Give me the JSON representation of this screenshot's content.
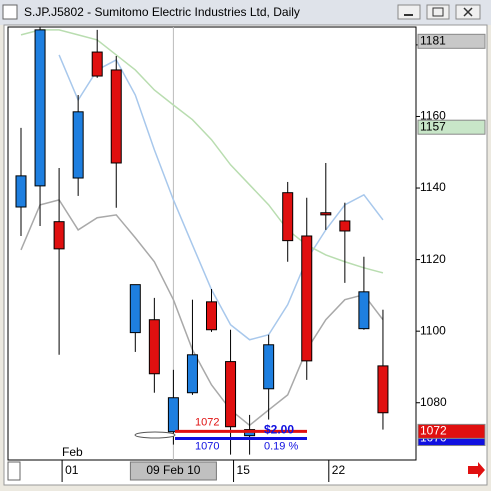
{
  "chart_data": {
    "type": "candlestick",
    "title": "S.JP.J5802 - Sumitomo Electric Industries Ltd, Daily",
    "month_label": "Feb",
    "categories": [
      null,
      null,
      "01",
      null,
      null,
      null,
      null,
      null,
      "09 Feb 10",
      null,
      null,
      "15",
      null,
      null,
      null,
      null,
      "22",
      null,
      null,
      null
    ],
    "highlighted_index": 8,
    "open": [
      1134.7,
      1140.6,
      1130.6,
      1142.8,
      1178.0,
      1173.0,
      1099.6,
      1103.2,
      1071.9,
      1082.8,
      1108.2,
      1091.5,
      1070.8,
      1083.9,
      1138.7,
      1126.6,
      1133.1,
      1130.8,
      1100.7,
      1090.3
    ],
    "high": [
      1156.8,
      1185.0,
      1145.6,
      1166.0,
      1184.2,
      1176.9,
      1113.0,
      1109.3,
      1089.2,
      1108.8,
      1111.8,
      1100.4,
      1076.6,
      1099.0,
      1141.7,
      1137.3,
      1147.0,
      1135.9,
      1120.8,
      1106.0
    ],
    "low": [
      1126.6,
      1129.4,
      1093.4,
      1137.8,
      1170.8,
      1134.5,
      1094.2,
      1082.8,
      1068.3,
      1082.2,
      1099.8,
      1065.5,
      1065.5,
      1075.3,
      1119.4,
      1086.4,
      1128.3,
      1113.5,
      1100.4,
      1072.5
    ],
    "close": [
      1143.4,
      1184.2,
      1123.0,
      1161.3,
      1171.3,
      1147.0,
      1113.0,
      1088.1,
      1081.4,
      1093.4,
      1100.4,
      1073.3,
      1072.5,
      1096.2,
      1125.3,
      1091.7,
      1132.5,
      1128.0,
      1111.0,
      1077.2
    ],
    "up_color": "#1e7fe0",
    "down_color": "#e01010",
    "series": [
      {
        "color": "#a9a9a9",
        "values": [
          1122.7,
          1135.3,
          1136.7,
          1128.3,
          1131.7,
          1132.5,
          1126.1,
          1119.4,
          1108.8,
          1094.8,
          1085.0,
          1078.0,
          1073.7,
          1078.0,
          1082.2,
          1094.8,
          1103.2,
          1108.8,
          1110.2,
          1103.2
        ]
      },
      {
        "color": "#a8c8ec",
        "values": [
          null,
          null,
          1177.2,
          1164.6,
          1173.0,
          1175.8,
          1166.0,
          1150.7,
          1136.7,
          1124.1,
          1111.6,
          1101.8,
          1097.6,
          1099.0,
          1107.4,
          1120.0,
          1128.3,
          1135.3,
          1138.1,
          1131.1
        ]
      },
      {
        "color": "#b9ddb0",
        "values": [
          1182.8,
          1184.2,
          1184.2,
          1182.8,
          1181.4,
          1177.2,
          1173.0,
          1167.4,
          1163.2,
          1159.1,
          1153.5,
          1146.5,
          1140.9,
          1135.3,
          1128.3,
          1124.1,
          1121.3,
          1119.4,
          1117.7,
          1116.3
        ]
      }
    ],
    "ylim": [
      1064,
      1185
    ],
    "yticks": [
      1080,
      1100,
      1120,
      1140,
      1160,
      1180
    ],
    "price_markers": [
      {
        "value": 1181,
        "color": "#c8c8c8"
      },
      {
        "value": 1157,
        "color": "#c8e6c8"
      },
      {
        "value": 1070,
        "color": "#1010e0"
      },
      {
        "value": 1072,
        "color": "#e01010"
      }
    ],
    "position": {
      "sell": 1072,
      "buy": 1070,
      "profit": "$2.00",
      "percent": "0.19 %"
    }
  }
}
